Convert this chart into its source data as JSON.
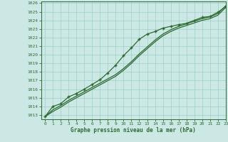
{
  "title": "Graphe pression niveau de la mer (hPa)",
  "bg_color": "#cce8e4",
  "grid_color": "#9ecfc8",
  "line_color": "#2d6a30",
  "xlim": [
    -0.5,
    23
  ],
  "ylim": [
    1012.5,
    1026.2
  ],
  "xticks": [
    0,
    1,
    2,
    3,
    4,
    5,
    6,
    7,
    8,
    9,
    10,
    11,
    12,
    13,
    14,
    15,
    16,
    17,
    18,
    19,
    20,
    21,
    22,
    23
  ],
  "yticks": [
    1013,
    1014,
    1015,
    1016,
    1017,
    1018,
    1019,
    1020,
    1021,
    1022,
    1023,
    1024,
    1025,
    1026
  ],
  "hours": [
    0,
    1,
    2,
    3,
    4,
    5,
    6,
    7,
    8,
    9,
    10,
    11,
    12,
    13,
    14,
    15,
    16,
    17,
    18,
    19,
    20,
    21,
    22,
    23
  ],
  "line_marked": [
    1012.8,
    1014.0,
    1014.3,
    1015.1,
    1015.5,
    1016.0,
    1016.55,
    1017.1,
    1017.9,
    1018.8,
    1019.9,
    1020.8,
    1021.8,
    1022.4,
    1022.7,
    1023.1,
    1023.3,
    1023.5,
    1023.65,
    1024.0,
    1024.35,
    1024.45,
    1024.95,
    1025.6
  ],
  "line_upper": [
    1012.8,
    1013.6,
    1014.1,
    1014.7,
    1015.2,
    1015.7,
    1016.2,
    1016.7,
    1017.2,
    1017.7,
    1018.4,
    1019.2,
    1020.1,
    1020.9,
    1021.7,
    1022.4,
    1022.9,
    1023.3,
    1023.6,
    1023.9,
    1024.2,
    1024.4,
    1024.8,
    1025.7
  ],
  "line_lower": [
    1012.8,
    1013.4,
    1013.9,
    1014.5,
    1015.0,
    1015.5,
    1016.0,
    1016.5,
    1017.0,
    1017.5,
    1018.2,
    1019.0,
    1019.9,
    1020.7,
    1021.5,
    1022.2,
    1022.7,
    1023.1,
    1023.4,
    1023.7,
    1024.0,
    1024.2,
    1024.6,
    1025.5
  ]
}
